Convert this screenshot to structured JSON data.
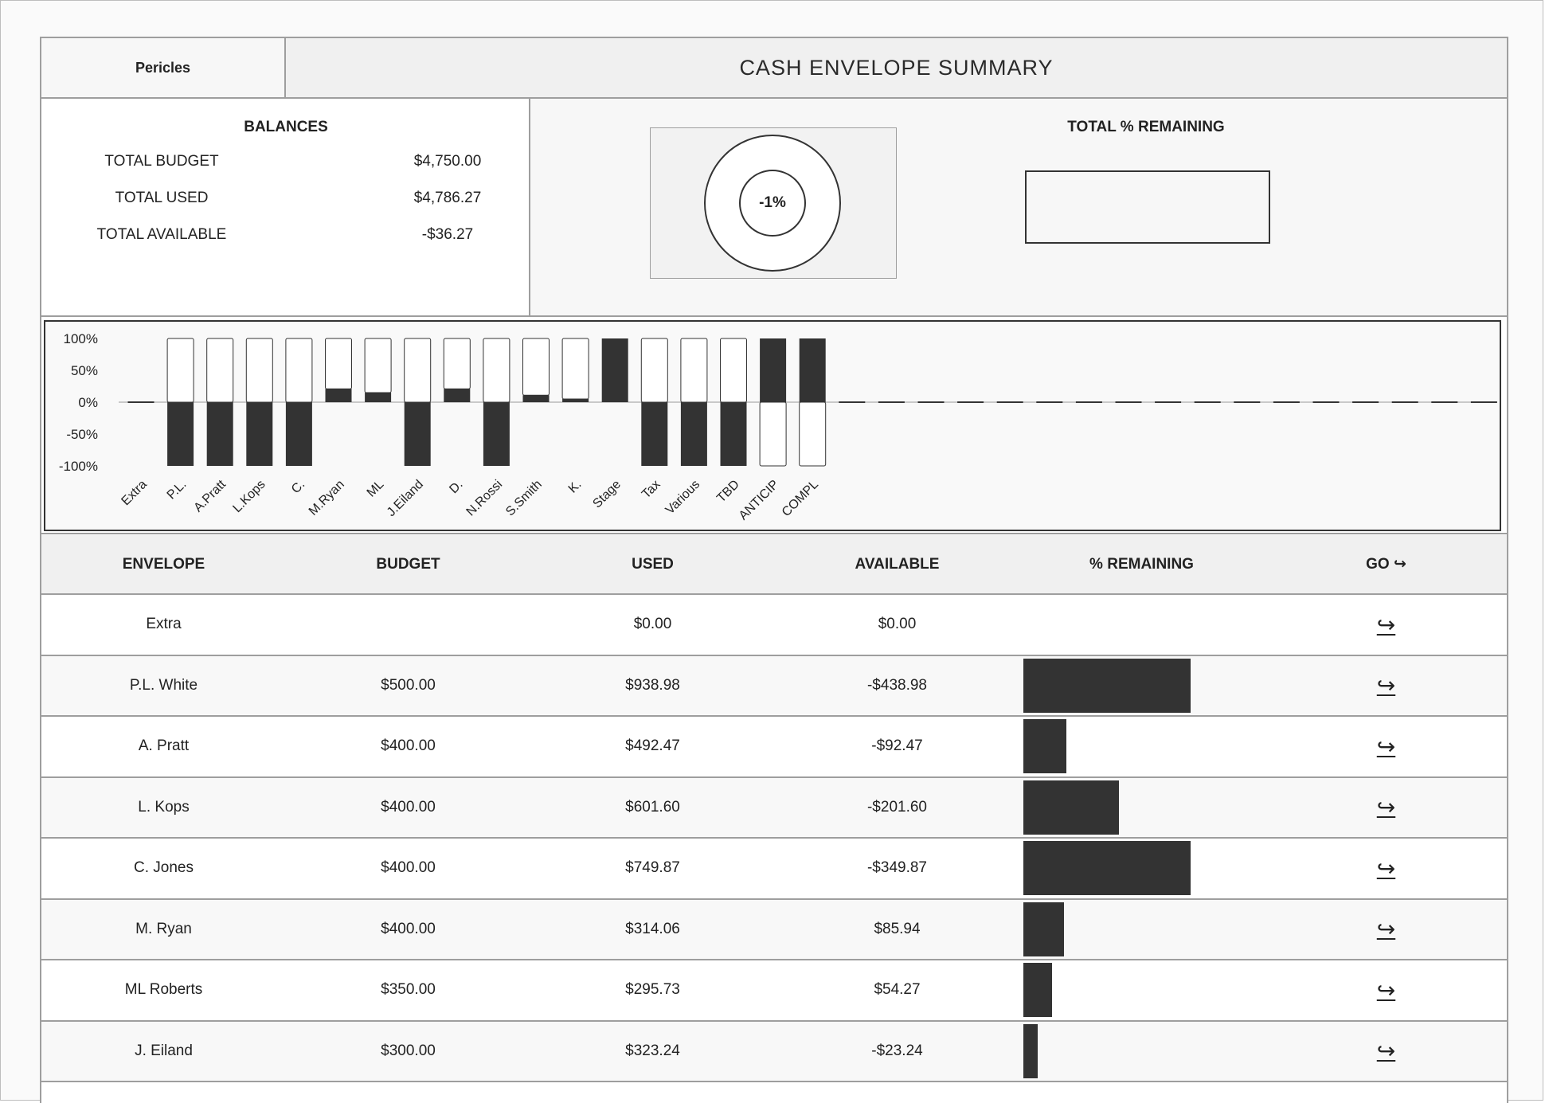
{
  "header": {
    "name": "Pericles",
    "title": "CASH ENVELOPE SUMMARY"
  },
  "balances": {
    "title": "BALANCES",
    "rows": [
      {
        "label": "TOTAL BUDGET",
        "value": "$4,750.00"
      },
      {
        "label": "TOTAL USED",
        "value": "$4,786.27"
      },
      {
        "label": "TOTAL AVAILABLE",
        "value": "-$36.27"
      }
    ]
  },
  "gauge": {
    "percent_label": "-1%",
    "percent": -1
  },
  "remaining": {
    "title": "TOTAL % REMAINING",
    "fraction": 0.0
  },
  "colors": {
    "dark": "#333333",
    "border": "#9e9e9e",
    "header_bg": "#f0f0f0"
  },
  "chart_data": {
    "type": "bar",
    "ylim": [
      -100,
      100
    ],
    "yticks": [
      "100%",
      "50%",
      "0%",
      "-50%",
      "-100%"
    ],
    "categories": [
      "Extra",
      "P.L.",
      "A.Pratt",
      "L.Kops",
      "C.",
      "M.Ryan",
      "ML",
      "J.Eiland",
      "D.",
      "N.Rossi",
      "S.Smith",
      "K.",
      "Stage",
      "Tax",
      "Various",
      "TBD",
      "ANTICIP",
      "COMPL"
    ],
    "values": [
      0,
      -100,
      -100,
      -100,
      -100,
      21,
      15,
      -100,
      21,
      -100,
      11,
      5,
      100,
      -100,
      -100,
      -100,
      100,
      100
    ],
    "empty_slots": 17
  },
  "table": {
    "headers": [
      "ENVELOPE",
      "BUDGET",
      "USED",
      "AVAILABLE",
      "% REMAINING",
      "GO ↪"
    ],
    "go_icon": "↪",
    "rows": [
      {
        "envelope": "Extra",
        "budget": "",
        "used": "$0.00",
        "available": "$0.00",
        "bar": 0
      },
      {
        "envelope": "P.L. White",
        "budget": "$500.00",
        "used": "$938.98",
        "available": "-$438.98",
        "bar": 0.7
      },
      {
        "envelope": "A. Pratt",
        "budget": "$400.00",
        "used": "$492.47",
        "available": "-$92.47",
        "bar": 0.18
      },
      {
        "envelope": "L. Kops",
        "budget": "$400.00",
        "used": "$601.60",
        "available": "-$201.60",
        "bar": 0.4
      },
      {
        "envelope": "C. Jones",
        "budget": "$400.00",
        "used": "$749.87",
        "available": "-$349.87",
        "bar": 0.7
      },
      {
        "envelope": "M. Ryan",
        "budget": "$400.00",
        "used": "$314.06",
        "available": "$85.94",
        "bar": 0.17
      },
      {
        "envelope": "ML Roberts",
        "budget": "$350.00",
        "used": "$295.73",
        "available": "$54.27",
        "bar": 0.12
      },
      {
        "envelope": "J. Eiland",
        "budget": "$300.00",
        "used": "$323.24",
        "available": "-$23.24",
        "bar": 0.06
      }
    ]
  }
}
